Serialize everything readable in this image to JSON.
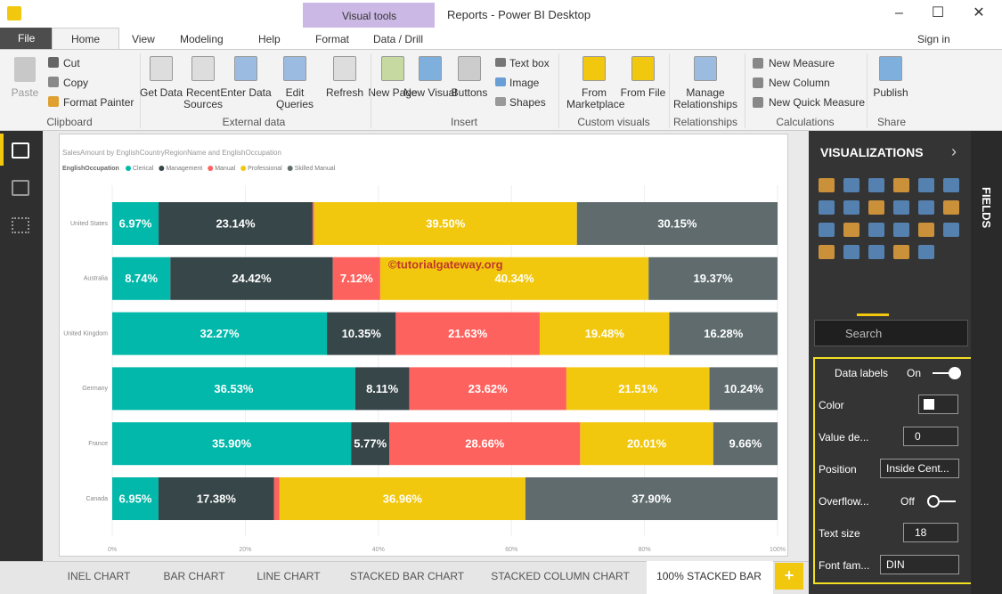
{
  "window": {
    "title": "Reports - Power BI Desktop",
    "context_tab": "Visual tools",
    "sign_in": "Sign in"
  },
  "tabs": [
    "File",
    "Home",
    "View",
    "Modeling",
    "Help",
    "Format",
    "Data / Drill"
  ],
  "ribbon": {
    "clipboard": {
      "name": "Clipboard",
      "paste": "Paste",
      "cut": "Cut",
      "copy": "Copy",
      "format_painter": "Format Painter"
    },
    "external_data": {
      "name": "External data",
      "buttons": [
        "Get Data",
        "Recent Sources",
        "Enter Data",
        "Edit Queries",
        "Refresh"
      ]
    },
    "insert": {
      "name": "Insert",
      "buttons": [
        "New Page",
        "New Visual",
        "Buttons"
      ],
      "small": [
        "Text box",
        "Image",
        "Shapes"
      ]
    },
    "custom_visuals": {
      "name": "Custom visuals",
      "buttons": [
        "From Marketplace",
        "From File"
      ]
    },
    "relationships": {
      "name": "Relationships",
      "buttons": [
        "Manage Relationships"
      ]
    },
    "calculations": {
      "name": "Calculations",
      "small": [
        "New Measure",
        "New Column",
        "New Quick Measure"
      ]
    },
    "share": {
      "name": "Share",
      "buttons": [
        "Publish"
      ]
    }
  },
  "pane": {
    "title": "VISUALIZATIONS",
    "fields": "FIELDS",
    "search": "Search",
    "data_labels": {
      "label": "Data labels",
      "state": "On"
    },
    "settings": [
      {
        "label": "Color"
      },
      {
        "label": "Value de...",
        "value": "0"
      },
      {
        "label": "Position",
        "value": "Inside Cent..."
      },
      {
        "label": "Overflow...",
        "value": "Off"
      },
      {
        "label": "Text size",
        "value": "18"
      },
      {
        "label": "Font fam...",
        "value": "DIN"
      }
    ]
  },
  "page_tabs": [
    "INEL CHART",
    "BAR CHART",
    "LINE CHART",
    "STACKED BAR CHART",
    "STACKED COLUMN CHART",
    "100% STACKED BAR"
  ],
  "add_tab": "+",
  "chart": {
    "type": "stacked_bar_100",
    "title": "SalesAmount by EnglishCountryRegionName and EnglishOccupation",
    "legend_title": "EnglishOccupation",
    "watermark": "©tutorialgateway.org",
    "categories": [
      "United States",
      "Australia",
      "United Kingdom",
      "Germany",
      "France",
      "Canada"
    ],
    "series": [
      {
        "name": "Clerical",
        "color": "#01b8aa",
        "values": [
          6.97,
          8.74,
          32.27,
          36.53,
          35.9,
          6.95
        ],
        "value_labels": [
          "6.97%",
          "8.74%",
          "32.27%",
          "36.53%",
          "35.90%",
          "6.95%"
        ]
      },
      {
        "name": "Management",
        "color": "#374649",
        "values": [
          23.14,
          24.42,
          10.35,
          8.11,
          5.77,
          17.38
        ],
        "value_labels": [
          "23.14%",
          "24.42%",
          "10.35%",
          "8.11%",
          "5.77%",
          "17.38%"
        ]
      },
      {
        "name": "Manual",
        "color": "#fd625e",
        "values": [
          0.24,
          7.12,
          21.63,
          23.62,
          28.66,
          0.81
        ],
        "value_labels": [
          null,
          "7.12%",
          "21.63%",
          "23.62%",
          "28.66%",
          null
        ]
      },
      {
        "name": "Professional",
        "color": "#f2c80f",
        "values": [
          39.5,
          40.34,
          19.48,
          21.51,
          20.01,
          36.96
        ],
        "value_labels": [
          "39.50%",
          "40.34%",
          "19.48%",
          "21.51%",
          "20.01%",
          "36.96%"
        ]
      },
      {
        "name": "Skilled Manual",
        "color": "#5f6b6d",
        "values": [
          30.15,
          19.37,
          16.28,
          10.24,
          9.66,
          37.9
        ],
        "value_labels": [
          "30.15%",
          "19.37%",
          "16.28%",
          "10.24%",
          "9.66%",
          "37.90%"
        ]
      }
    ],
    "xlim": [
      0,
      100
    ],
    "xticks": [
      {
        "value": 0,
        "label": "0%"
      },
      {
        "value": 20,
        "label": "20%"
      },
      {
        "value": 40,
        "label": "40%"
      },
      {
        "value": 60,
        "label": "60%"
      },
      {
        "value": 80,
        "label": "80%"
      },
      {
        "value": 100,
        "label": "100%"
      }
    ],
    "grid": true
  }
}
